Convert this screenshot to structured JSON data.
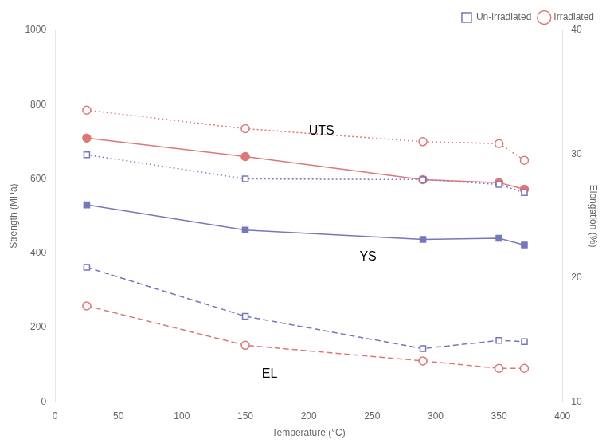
{
  "chart_data": {
    "type": "line",
    "xlabel": "Temperature (°C)",
    "ylabel": "Strength (MPa)",
    "y2label": "Elongation (%)",
    "x": [
      25,
      150,
      290,
      350,
      370
    ],
    "series": [
      {
        "name": "Un-irradiated",
        "color": "#7777bb",
        "values": [
          665,
          600,
          598,
          585,
          563
        ],
        "marker": "square-open",
        "line_style": "dotted"
      },
      {
        "name": "Irradiated",
        "color": "#dd7777",
        "values": [
          785,
          735,
          700,
          695,
          650
        ],
        "marker": "circle-open",
        "line_style": "dotted"
      },
      {
        "color": "#7777bb",
        "values": [
          530,
          462,
          437,
          440,
          422
        ],
        "marker": "square",
        "line_style": "solid"
      },
      {
        "color": "#dd7777",
        "values": [
          710,
          660,
          598,
          590,
          572
        ],
        "marker": "circle",
        "line_style": "solid"
      },
      {
        "color": "#7777bb",
        "values": [
          362,
          230,
          143,
          165,
          162
        ],
        "marker": "square-open-cross",
        "line_style": "dashed"
      },
      {
        "color": "#dd7777",
        "values": [
          258,
          152,
          110,
          90,
          90
        ],
        "marker": "circle-open-cross",
        "line_style": "dashed"
      }
    ],
    "xlim": [
      0,
      400
    ],
    "xticks": [
      0,
      50,
      100,
      150,
      200,
      250,
      300,
      350,
      400
    ],
    "ylim": [
      0,
      1000
    ],
    "yticks": [
      0,
      200,
      400,
      600,
      800,
      1000
    ],
    "y2lim": [
      10,
      40
    ],
    "y2ticks": [
      10,
      20,
      30,
      40
    ],
    "grid": false,
    "legend": "upper right",
    "annotations": [
      {
        "text": "UTS",
        "x": 200,
        "y": 720
      },
      {
        "text": "YS",
        "x": 240,
        "y": 380
      },
      {
        "text": "EL",
        "x": 163,
        "y": 65
      }
    ]
  }
}
